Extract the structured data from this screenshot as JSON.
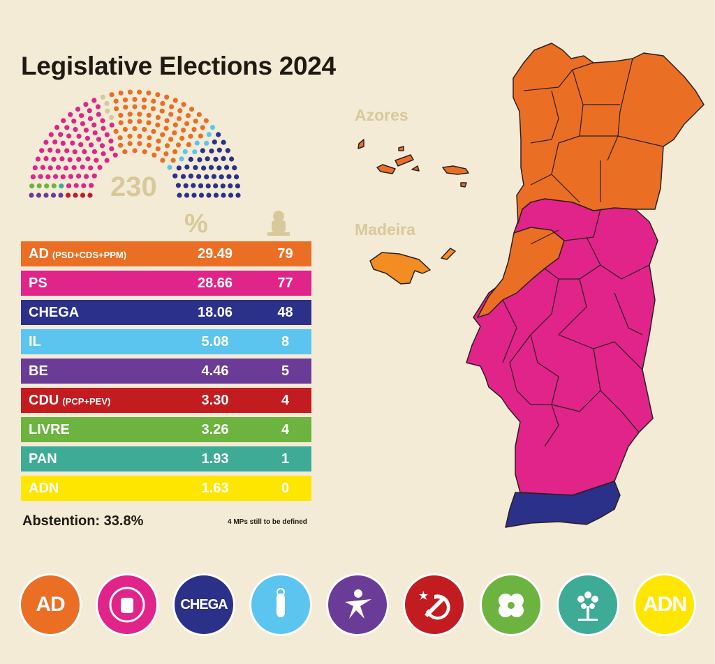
{
  "title": "Legislative Elections 2024",
  "total_seats": "230",
  "headers": {
    "percent": "%",
    "seats_icon": "mp-person-icon"
  },
  "parties": [
    {
      "name": "AD",
      "sub": "(PSD+CDS+PPM)",
      "pct": "29.49",
      "seats": "79",
      "color": "#ea6f25"
    },
    {
      "name": "PS",
      "sub": "",
      "pct": "28.66",
      "seats": "77",
      "color": "#e0248a"
    },
    {
      "name": "CHEGA",
      "sub": "",
      "pct": "18.06",
      "seats": "48",
      "color": "#2b3089"
    },
    {
      "name": "IL",
      "sub": "",
      "pct": "5.08",
      "seats": "8",
      "color": "#5bc4ef"
    },
    {
      "name": "BE",
      "sub": "",
      "pct": "4.46",
      "seats": "5",
      "color": "#6a3c97"
    },
    {
      "name": "CDU",
      "sub": "(PCP+PEV)",
      "pct": "3.30",
      "seats": "4",
      "color": "#c21c20"
    },
    {
      "name": "LIVRE",
      "sub": "",
      "pct": "3.26",
      "seats": "4",
      "color": "#6db33f"
    },
    {
      "name": "PAN",
      "sub": "",
      "pct": "1.93",
      "seats": "1",
      "color": "#3eab97"
    },
    {
      "name": "ADN",
      "sub": "",
      "pct": "1.63",
      "seats": "0",
      "color": "#ffe600"
    }
  ],
  "undefined_seats": 4,
  "undefined_color": "#d8c99a",
  "abstention": "Abstention: 33.8%",
  "note": "4 MPs still to be defined",
  "map": {
    "azores_label": "Azores",
    "madeira_label": "Madeira"
  },
  "logos": [
    {
      "text": "AD",
      "color": "#ea6f25",
      "icon": "ad-logo-icon"
    },
    {
      "text": "",
      "color": "#e0248a",
      "icon": "ps-fist-logo-icon"
    },
    {
      "text": "CHEGA",
      "color": "#2b3089",
      "icon": "chega-logo-icon"
    },
    {
      "text": "",
      "color": "#5bc4ef",
      "icon": "il-logo-icon"
    },
    {
      "text": "",
      "color": "#6a3c97",
      "icon": "be-star-figure-icon"
    },
    {
      "text": "",
      "color": "#c21c20",
      "icon": "hammer-sickle-icon"
    },
    {
      "text": "",
      "color": "#6db33f",
      "icon": "livre-poppy-icon"
    },
    {
      "text": "",
      "color": "#3eab97",
      "icon": "pan-tree-icon"
    },
    {
      "text": "ADN",
      "color": "#ffe600",
      "icon": "adn-logo-icon"
    }
  ]
}
